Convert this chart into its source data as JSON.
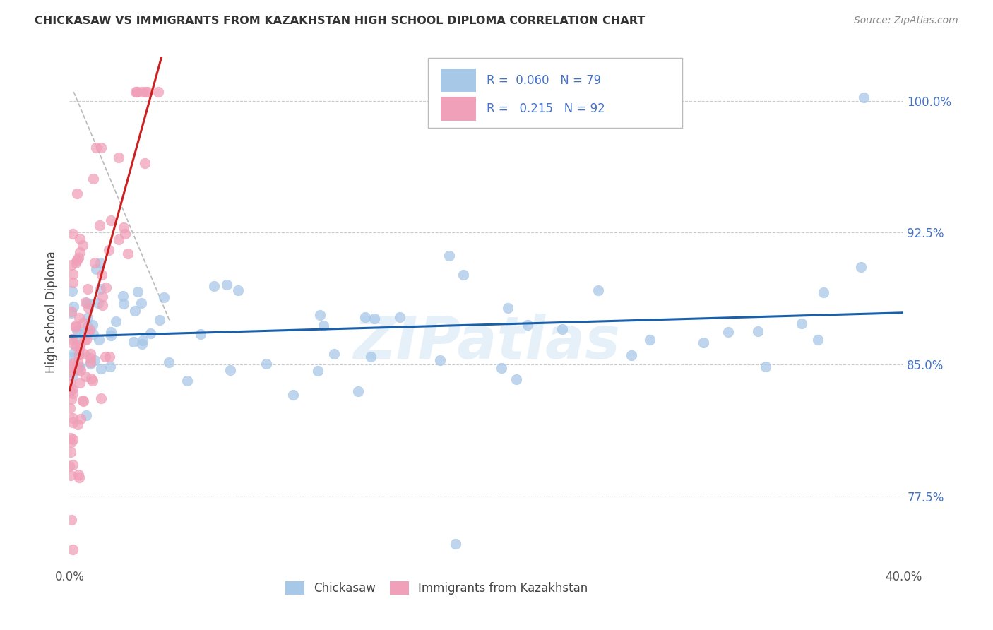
{
  "title": "CHICKASAW VS IMMIGRANTS FROM KAZAKHSTAN HIGH SCHOOL DIPLOMA CORRELATION CHART",
  "source": "Source: ZipAtlas.com",
  "ylabel": "High School Diploma",
  "legend_label1": "Chickasaw",
  "legend_label2": "Immigrants from Kazakhstan",
  "watermark": "ZIPatlas",
  "scatter_blue_color": "#a8c8e8",
  "scatter_pink_color": "#f0a0b8",
  "trend_blue_color": "#1a5faa",
  "trend_pink_color": "#cc2020",
  "background_color": "#ffffff",
  "grid_color": "#cccccc",
  "right_tick_color": "#4472c4",
  "y_tick_positions": [
    0.775,
    0.85,
    0.925,
    1.0
  ],
  "y_tick_labels": [
    "77.5%",
    "85.0%",
    "92.5%",
    "100.0%"
  ],
  "xlim": [
    0.0,
    0.4
  ],
  "ylim": [
    0.735,
    1.025
  ],
  "x_tick_positions": [
    0.0,
    0.05,
    0.1,
    0.15,
    0.2,
    0.25,
    0.3,
    0.35,
    0.4
  ],
  "x_tick_labels_show": {
    "0.0": "0.0%",
    "0.40": "40.0%"
  }
}
